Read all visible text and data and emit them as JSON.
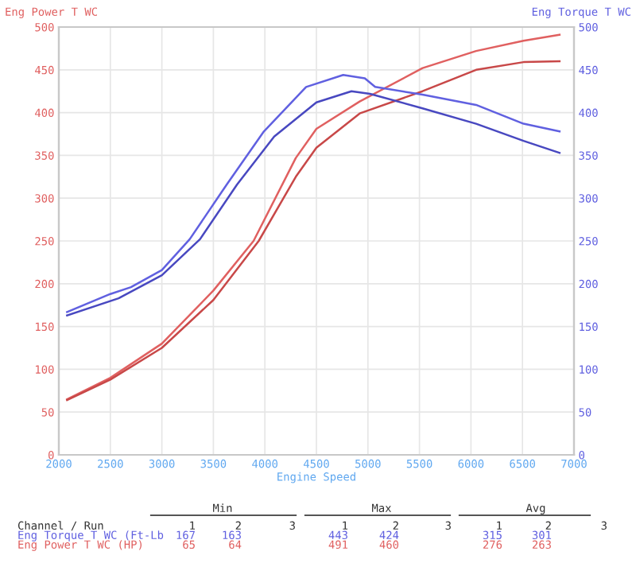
{
  "chart_data": {
    "type": "line",
    "xlabel": "Engine Speed",
    "ylabel": "Eng Power T WC",
    "y2label": "Eng Torque T WC",
    "xlim": [
      2000,
      7000
    ],
    "xticks": [
      2000,
      2500,
      3000,
      3500,
      4000,
      4500,
      5000,
      5500,
      6000,
      6500,
      7000
    ],
    "ylim": [
      0,
      500
    ],
    "yticks": [
      0,
      50,
      100,
      150,
      200,
      250,
      300,
      350,
      400,
      450,
      500
    ],
    "y2lim": [
      0,
      500
    ],
    "y2ticks": [
      0,
      50,
      100,
      150,
      200,
      250,
      300,
      350,
      400,
      450,
      500
    ],
    "grid": true,
    "line_style": "solid",
    "marker": "none",
    "series": [
      {
        "color": "#e06060",
        "x": [
          2080,
          2500,
          3000,
          3500,
          3890,
          4300,
          4500,
          4920,
          5530,
          6050,
          6510,
          6860
        ],
        "values": [
          65,
          90,
          130,
          192,
          250,
          347,
          381,
          413,
          452,
          472,
          484,
          491
        ]
      },
      {
        "color": "#c84848",
        "x": [
          2080,
          2500,
          3000,
          3500,
          3940,
          4300,
          4500,
          4920,
          5530,
          6050,
          6510,
          6860
        ],
        "values": [
          64,
          88,
          125,
          181,
          250,
          325,
          359,
          399,
          425,
          450,
          459,
          460
        ]
      },
      {
        "color": "#6060e0",
        "axis": "y2",
        "x": [
          2080,
          2500,
          2700,
          3000,
          3270,
          3630,
          3990,
          4400,
          4760,
          4970,
          5070,
          5530,
          6050,
          6510,
          6860
        ],
        "values": [
          167,
          188,
          196,
          216,
          252,
          316,
          378,
          430,
          444,
          440,
          430,
          421,
          409,
          387,
          378
        ]
      },
      {
        "color": "#4848c0",
        "axis": "y2",
        "x": [
          2080,
          2580,
          3000,
          3370,
          3730,
          4090,
          4500,
          4840,
          5020,
          5530,
          6050,
          6510,
          6860
        ],
        "values": [
          163,
          183,
          210,
          252,
          316,
          372,
          412,
          425,
          422,
          405,
          387,
          367,
          353
        ]
      }
    ],
    "annotations": [
      "Min",
      "Max",
      "Avg",
      "Channel / Run",
      "1",
      "2",
      "3",
      "1",
      "2",
      "3",
      "1",
      "2",
      "3",
      "Eng Torque T WC (Ft-Lb",
      "167",
      "163",
      "443",
      "424",
      "315",
      "301",
      "Eng Power T WC (HP)",
      "65",
      "64",
      "491",
      "460",
      "276",
      "263"
    ]
  }
}
